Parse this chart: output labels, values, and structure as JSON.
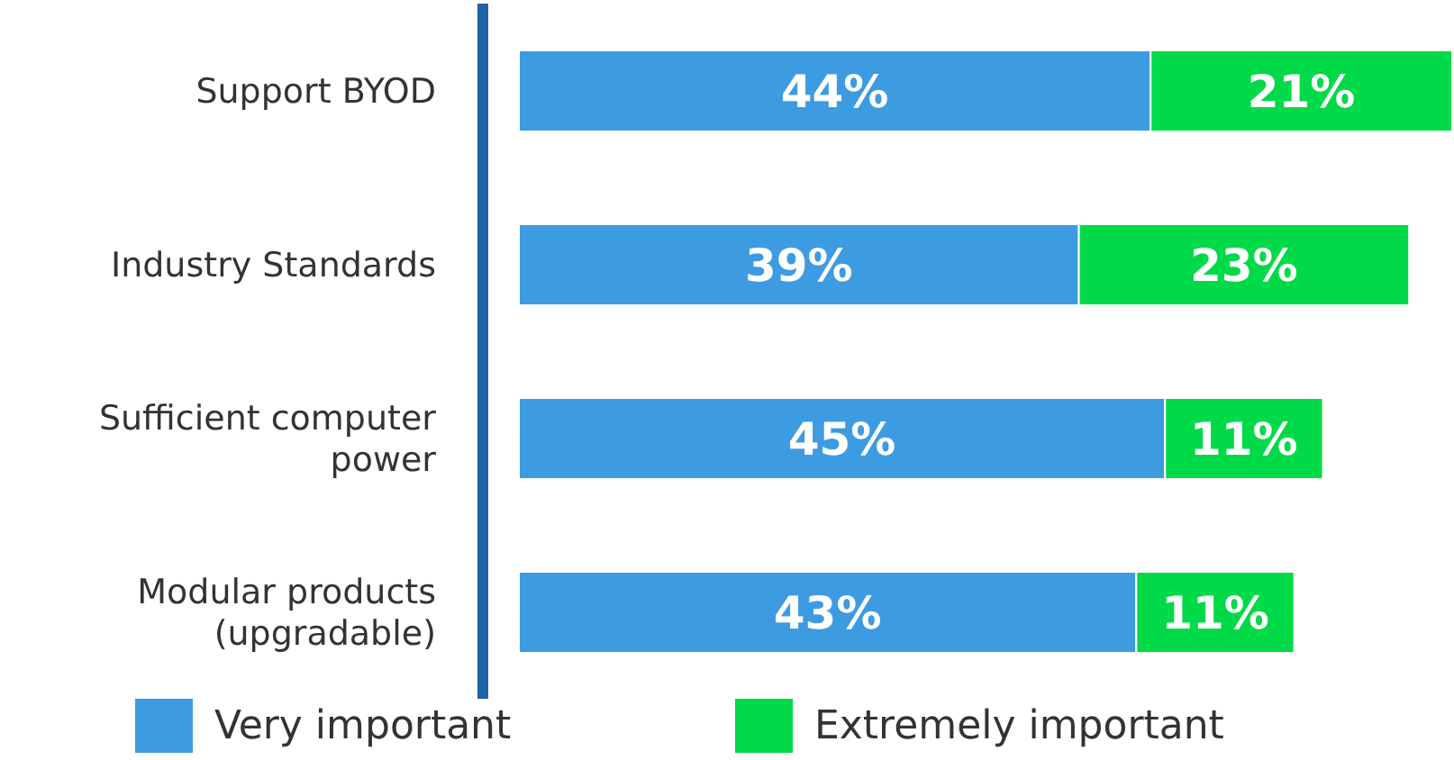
{
  "chart_data": {
    "type": "bar",
    "orientation": "horizontal",
    "stacked": true,
    "legend": "bottom",
    "categories": [
      "Support BYOD",
      "Industry Standards",
      "Sufficient computer power",
      "Modular products (upgradable)"
    ],
    "series": [
      {
        "name": "Very important",
        "color": "#3d9be2",
        "values": [
          44,
          39,
          45,
          43
        ],
        "value_labels": [
          "44%",
          "39%",
          "45%",
          "43%"
        ]
      },
      {
        "name": "Extremely important",
        "color": "#00da48",
        "values": [
          21,
          23,
          11,
          11
        ],
        "value_labels": [
          "21%",
          "23%",
          "11%",
          "11%"
        ]
      }
    ]
  }
}
